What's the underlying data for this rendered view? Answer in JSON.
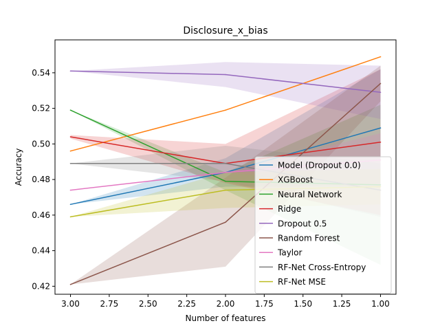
{
  "chart_data": {
    "type": "line",
    "title": "Disclosure_x_bias",
    "xlabel": "Number of features",
    "ylabel": "Accuracy",
    "x": [
      3,
      2,
      1
    ],
    "xlim": [
      3.1,
      0.9
    ],
    "ylim": [
      0.4155,
      0.5585
    ],
    "x_reversed": true,
    "xticks": [
      "3.00",
      "2.75",
      "2.50",
      "2.25",
      "2.00",
      "1.75",
      "1.50",
      "1.25",
      "1.00"
    ],
    "xtick_values": [
      3.0,
      2.75,
      2.5,
      2.25,
      2.0,
      1.75,
      1.5,
      1.25,
      1.0
    ],
    "yticks": [
      "0.42",
      "0.44",
      "0.46",
      "0.48",
      "0.50",
      "0.52",
      "0.54"
    ],
    "ytick_values": [
      0.42,
      0.44,
      0.46,
      0.48,
      0.5,
      0.52,
      0.54
    ],
    "grid": false,
    "legend_position": "lower-right",
    "series": [
      {
        "name": "Model (Dropout 0.0)",
        "color": "#1f77b4",
        "values": [
          0.466,
          0.484,
          0.509
        ],
        "lower": [
          0.466,
          0.476,
          0.476
        ],
        "upper": [
          0.466,
          0.492,
          0.542
        ]
      },
      {
        "name": "XGBoost",
        "color": "#ff7f0e",
        "values": [
          0.496,
          0.519,
          0.549
        ],
        "lower": [
          0.496,
          0.519,
          0.549
        ],
        "upper": [
          0.496,
          0.519,
          0.549
        ]
      },
      {
        "name": "Neural Network",
        "color": "#2ca02c",
        "values": [
          0.519,
          0.479,
          0.477
        ],
        "lower": [
          0.519,
          0.474,
          0.432
        ],
        "upper": [
          0.519,
          0.484,
          0.522
        ]
      },
      {
        "name": "Ridge",
        "color": "#d62728",
        "values": [
          0.504,
          0.489,
          0.501
        ],
        "lower": [
          0.503,
          0.478,
          0.46
        ],
        "upper": [
          0.505,
          0.5,
          0.542
        ]
      },
      {
        "name": "Dropout 0.5",
        "color": "#9467bd",
        "values": [
          0.541,
          0.539,
          0.529
        ],
        "lower": [
          0.541,
          0.532,
          0.514
        ],
        "upper": [
          0.541,
          0.546,
          0.544
        ]
      },
      {
        "name": "Random Forest",
        "color": "#8c564b",
        "values": [
          0.421,
          0.456,
          0.534
        ],
        "lower": [
          0.421,
          0.431,
          0.524
        ],
        "upper": [
          0.421,
          0.481,
          0.544
        ]
      },
      {
        "name": "Taylor",
        "color": "#e377c2",
        "values": [
          0.474,
          0.484,
          0.491
        ],
        "lower": [
          0.474,
          0.484,
          0.476
        ],
        "upper": [
          0.474,
          0.484,
          0.506
        ]
      },
      {
        "name": "RF-Net Cross-Entropy",
        "color": "#7f7f7f",
        "values": [
          0.489,
          0.489,
          0.474
        ],
        "lower": [
          0.489,
          0.479,
          0.459
        ],
        "upper": [
          0.489,
          0.499,
          0.489
        ]
      },
      {
        "name": "RF-Net MSE",
        "color": "#bcbd22",
        "values": [
          0.459,
          0.474,
          0.476
        ],
        "lower": [
          0.459,
          0.464,
          0.466
        ],
        "upper": [
          0.459,
          0.484,
          0.486
        ]
      }
    ]
  }
}
